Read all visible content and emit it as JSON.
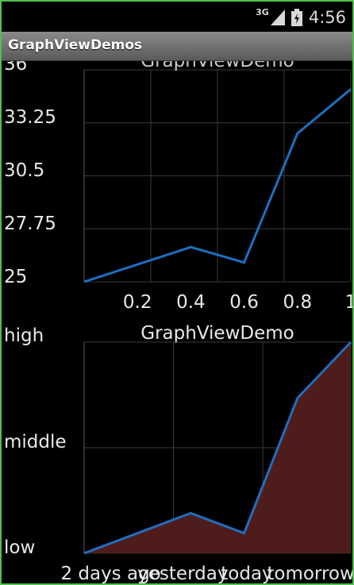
{
  "status_bar": {
    "network_type": "3G",
    "time": "4:56"
  },
  "app": {
    "title": "GraphViewDemos"
  },
  "chart_data": [
    {
      "type": "line",
      "title": "GraphViewDemo",
      "x": [
        0,
        0.4,
        0.6,
        0.8,
        1
      ],
      "series": [
        {
          "values": [
            25,
            26.8,
            26.0,
            32.7,
            35.0
          ]
        }
      ],
      "xlim": [
        0,
        1
      ],
      "ylim": [
        25,
        36
      ],
      "x_tick_labels": [
        "0.2",
        "0.4",
        "0.6",
        "0.8",
        "1"
      ],
      "x_tick_values": [
        0.2,
        0.4,
        0.6,
        0.8,
        1
      ],
      "y_tick_labels": [
        "36",
        "33.25",
        "30.5",
        "27.75",
        "25"
      ],
      "grid": true,
      "line_color": "#1e6fc0"
    },
    {
      "type": "area",
      "title": "GraphViewDemo",
      "x": [
        0,
        0.4,
        0.6,
        0.8,
        1
      ],
      "series": [
        {
          "values": [
            0,
            0.38,
            0.19,
            1.47,
            2.0
          ]
        }
      ],
      "xlim": [
        0,
        1
      ],
      "ylim": [
        0,
        2
      ],
      "x_tick_labels": [
        "2 days ago",
        "yesterday",
        "today",
        "tomorrow"
      ],
      "x_tick_values": [
        0.1,
        0.37,
        0.61,
        0.85
      ],
      "y_tick_labels": [
        "high",
        "middle",
        "low"
      ],
      "grid": true,
      "line_color": "#1e6fc0",
      "fill_color": "#4e1c1a"
    }
  ]
}
